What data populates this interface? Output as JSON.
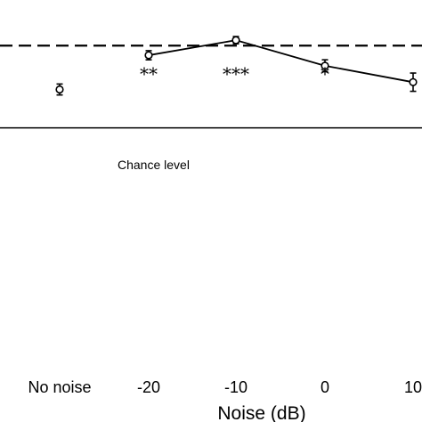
{
  "chart_data": {
    "type": "line",
    "xlabel": "Noise (dB)",
    "categories": [
      "No noise",
      "-20",
      "-10",
      "0",
      "10"
    ],
    "reference_label": "Chance level",
    "series": [
      {
        "points": [
          {
            "x": "No noise",
            "y": 0.584,
            "err": 0.012,
            "connected": false
          },
          {
            "x": "-20",
            "y": 0.659,
            "err": 0.01,
            "connected": true
          },
          {
            "x": "-10",
            "y": 0.692,
            "err": 0.008,
            "connected": true
          },
          {
            "x": "0",
            "y": 0.636,
            "err": 0.013,
            "connected": true
          },
          {
            "x": "10",
            "y": 0.6,
            "err": 0.02,
            "connected": true
          }
        ]
      }
    ],
    "significance": [
      {
        "x": "-20",
        "label": "**"
      },
      {
        "x": "-10",
        "label": "***"
      },
      {
        "x": "0",
        "label": "*"
      }
    ],
    "dashed_reference_y": 0.68,
    "chance_level_y": 0.5,
    "ylim": [
      0.0,
      0.78
    ],
    "grid": false,
    "colors": {
      "line": "#000000",
      "marker_fill": "#ffffff"
    }
  }
}
